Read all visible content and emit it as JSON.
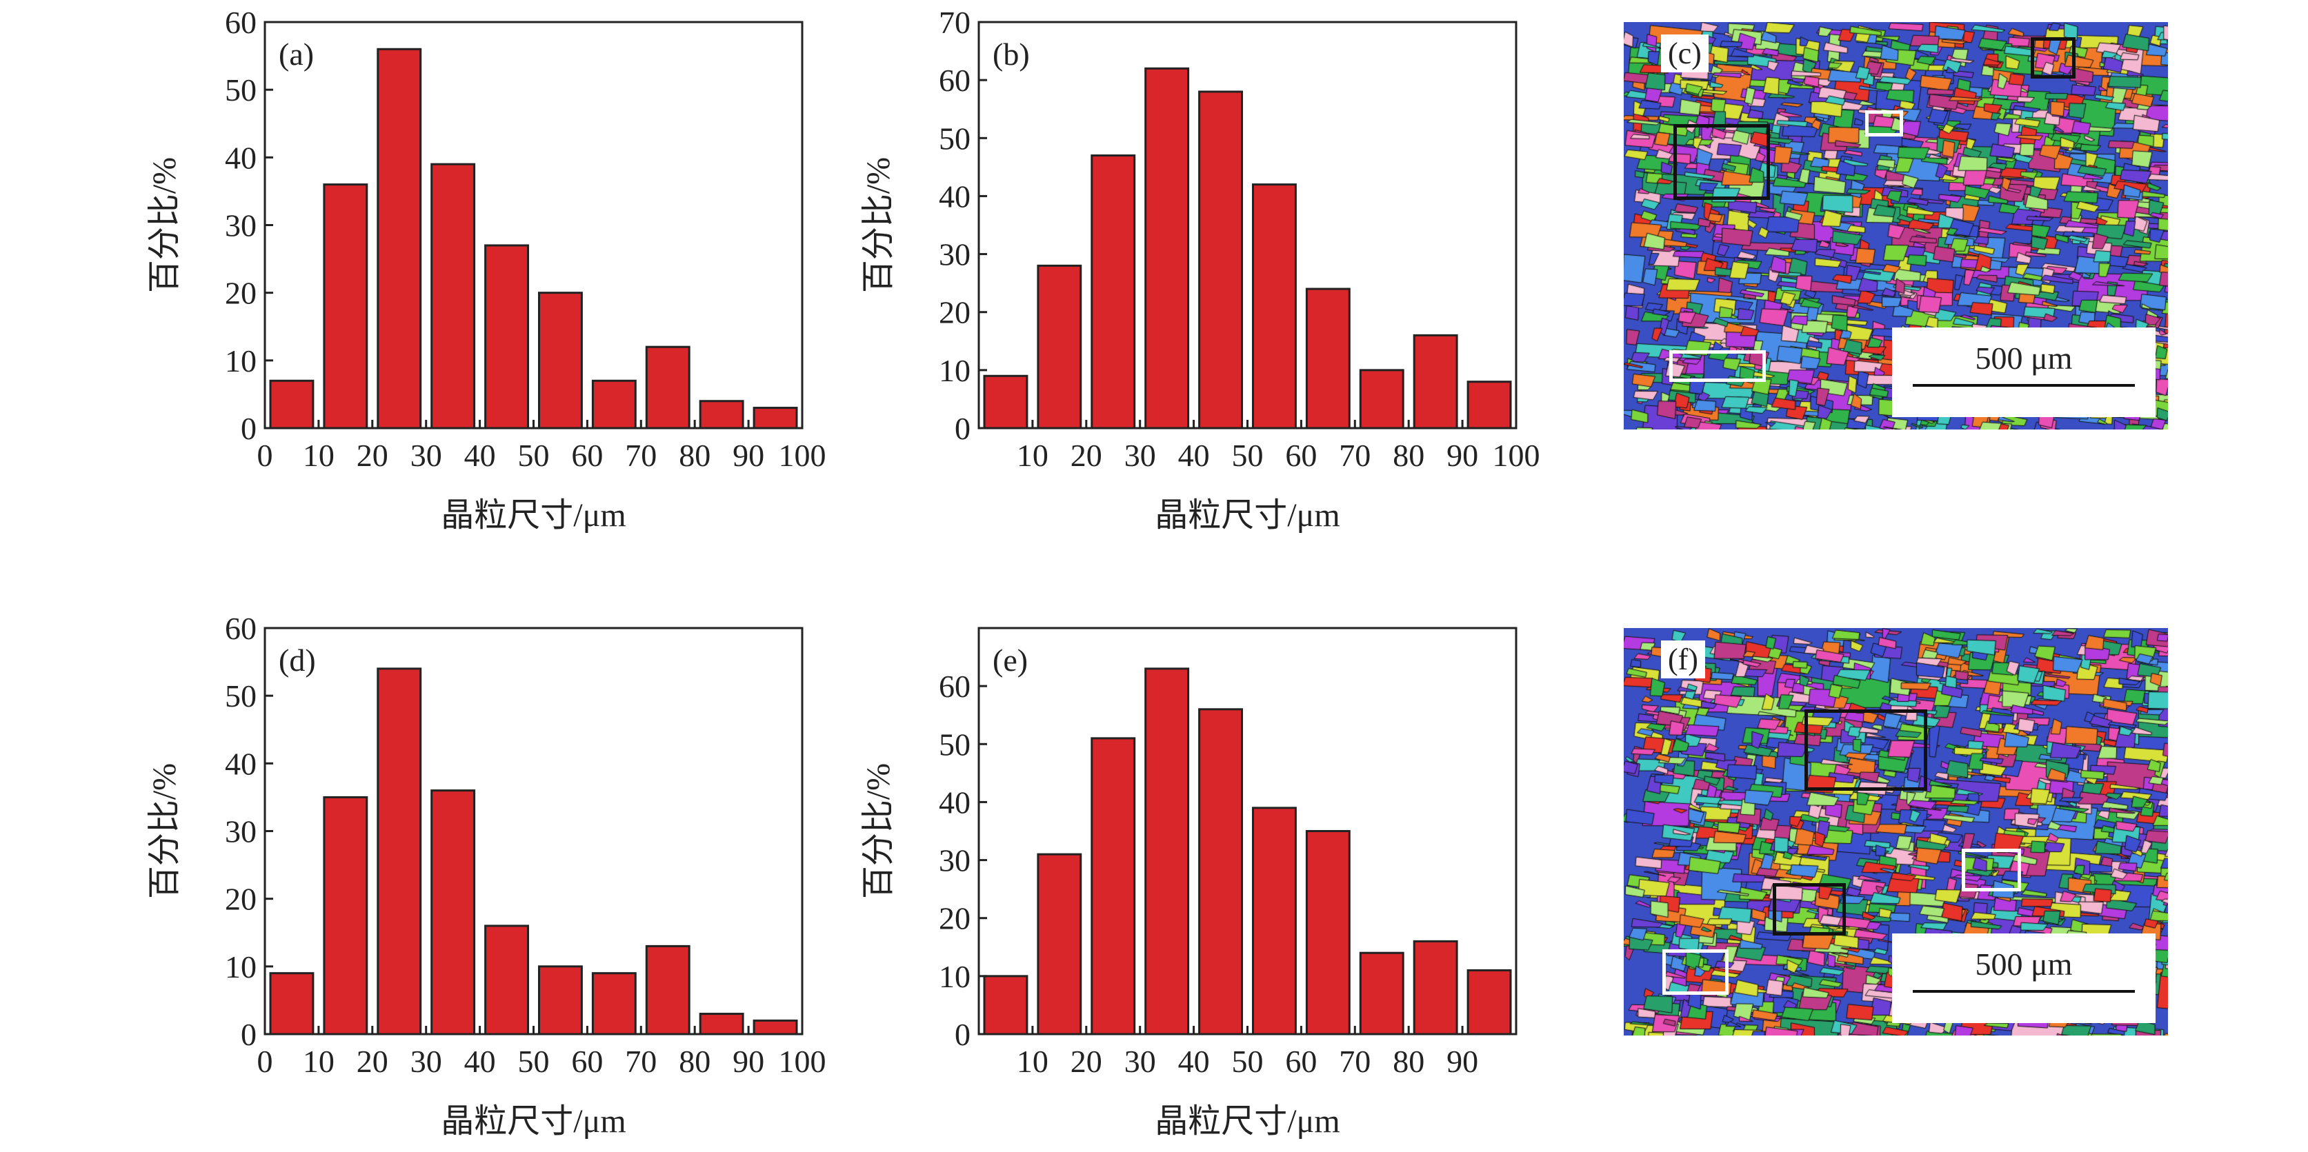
{
  "chart_data": [
    {
      "id": "a",
      "type": "bar",
      "label": "(a)",
      "xlabel": "晶粒尺寸/μm",
      "ylabel": "百分比/%",
      "ylim": [
        0,
        60
      ],
      "yticks": [
        0,
        10,
        20,
        30,
        40,
        50,
        60
      ],
      "xlim": [
        0,
        100
      ],
      "xticks": [
        "0",
        "10",
        "20",
        "30",
        "40",
        "50",
        "60",
        "70",
        "80",
        "90",
        "100"
      ],
      "categories": [
        "0-10",
        "10-20",
        "20-30",
        "30-40",
        "40-50",
        "50-60",
        "60-70",
        "70-80",
        "80-90",
        "90-100"
      ],
      "values": [
        7,
        36,
        56,
        39,
        27,
        20,
        7,
        12,
        4,
        3
      ]
    },
    {
      "id": "b",
      "type": "bar",
      "label": "(b)",
      "xlabel": "晶粒尺寸/μm",
      "ylabel": "百分比/%",
      "ylim": [
        0,
        70
      ],
      "yticks": [
        0,
        10,
        20,
        30,
        40,
        50,
        60,
        70
      ],
      "xlim": [
        0,
        100
      ],
      "xticks": [
        "",
        "10",
        "20",
        "30",
        "40",
        "50",
        "60",
        "70",
        "80",
        "90",
        "100"
      ],
      "categories": [
        "0-10",
        "10-20",
        "20-30",
        "30-40",
        "40-50",
        "50-60",
        "60-70",
        "70-80",
        "80-90",
        "90-100"
      ],
      "values": [
        9,
        28,
        47,
        62,
        58,
        42,
        24,
        10,
        16,
        8
      ]
    },
    {
      "id": "d",
      "type": "bar",
      "label": "(d)",
      "xlabel": "晶粒尺寸/μm",
      "ylabel": "百分比/%",
      "ylim": [
        0,
        60
      ],
      "yticks": [
        0,
        10,
        20,
        30,
        40,
        50,
        60
      ],
      "xlim": [
        0,
        100
      ],
      "xticks": [
        "0",
        "10",
        "20",
        "30",
        "40",
        "50",
        "60",
        "70",
        "80",
        "90",
        "100"
      ],
      "categories": [
        "0-10",
        "10-20",
        "20-30",
        "30-40",
        "40-50",
        "50-60",
        "60-70",
        "70-80",
        "80-90",
        "90-100"
      ],
      "values": [
        9,
        35,
        54,
        36,
        16,
        10,
        9,
        13,
        3,
        2
      ]
    },
    {
      "id": "e",
      "type": "bar",
      "label": "(e)",
      "xlabel": "晶粒尺寸/μm",
      "ylabel": "百分比/%",
      "ylim": [
        0,
        70
      ],
      "yticks": [
        0,
        10,
        20,
        30,
        40,
        50,
        60
      ],
      "xlim": [
        0,
        100
      ],
      "xticks": [
        "",
        "10",
        "20",
        "30",
        "40",
        "50",
        "60",
        "70",
        "80",
        "90",
        ""
      ],
      "categories": [
        "0-10",
        "10-20",
        "20-30",
        "30-40",
        "40-50",
        "50-60",
        "60-70",
        "70-80",
        "80-90",
        "90-100"
      ],
      "values": [
        10,
        31,
        51,
        63,
        56,
        39,
        35,
        14,
        16,
        11
      ]
    }
  ],
  "maps": [
    {
      "label": "(c)",
      "scale": "500 μm"
    },
    {
      "label": "(f)",
      "scale": "500 μm"
    }
  ],
  "colors": {
    "bar": "#d9262a",
    "edge": "#222222"
  }
}
